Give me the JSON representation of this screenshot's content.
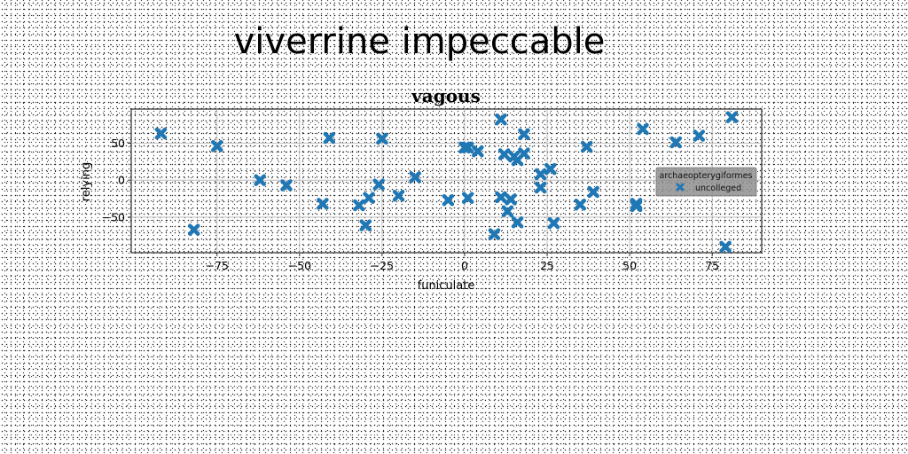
{
  "page_title": "viverrine impeccable",
  "chart_data": {
    "type": "scatter",
    "title": "vagous",
    "xlabel": "funiculate",
    "ylabel": "relying",
    "xlim": [
      -101,
      90
    ],
    "ylim": [
      -98,
      96
    ],
    "xticks": [
      -75,
      -50,
      -25,
      0,
      25,
      50,
      75
    ],
    "xtick_labels": [
      "−75",
      "−50",
      "−25",
      "0",
      "25",
      "50",
      "75"
    ],
    "yticks": [
      -50,
      0,
      50
    ],
    "ytick_labels": [
      "−50",
      "0",
      "50"
    ],
    "grid": true,
    "legend": {
      "title": "archaeopterygiformes",
      "position": "right",
      "entries": [
        "uncolleged"
      ]
    },
    "marker_color": "#1f77b4",
    "series": [
      {
        "name": "uncolleged",
        "points": [
          [
            -92,
            63
          ],
          [
            -82,
            -67
          ],
          [
            -75,
            46
          ],
          [
            -62,
            0
          ],
          [
            -54,
            -7
          ],
          [
            -43,
            -32
          ],
          [
            -41,
            57
          ],
          [
            -32,
            -34
          ],
          [
            -30,
            -61
          ],
          [
            -29,
            -24
          ],
          [
            -26,
            -6
          ],
          [
            -25,
            56
          ],
          [
            -20,
            -21
          ],
          [
            -15,
            4
          ],
          [
            -5,
            -27
          ],
          [
            0,
            44
          ],
          [
            1,
            -24
          ],
          [
            1,
            44
          ],
          [
            4,
            39
          ],
          [
            9,
            -73
          ],
          [
            11,
            82
          ],
          [
            11,
            -23
          ],
          [
            12,
            35
          ],
          [
            13,
            -42
          ],
          [
            14,
            -26
          ],
          [
            15,
            32
          ],
          [
            16,
            27
          ],
          [
            16,
            -57
          ],
          [
            18,
            62
          ],
          [
            18,
            36
          ],
          [
            23,
            8
          ],
          [
            23,
            -10
          ],
          [
            26,
            15
          ],
          [
            27,
            -58
          ],
          [
            35,
            -33
          ],
          [
            37,
            45
          ],
          [
            39,
            -16
          ],
          [
            52,
            -32
          ],
          [
            52,
            -35
          ],
          [
            54,
            69
          ],
          [
            64,
            51
          ],
          [
            71,
            60
          ],
          [
            79,
            -90
          ],
          [
            81,
            85
          ]
        ]
      }
    ]
  }
}
